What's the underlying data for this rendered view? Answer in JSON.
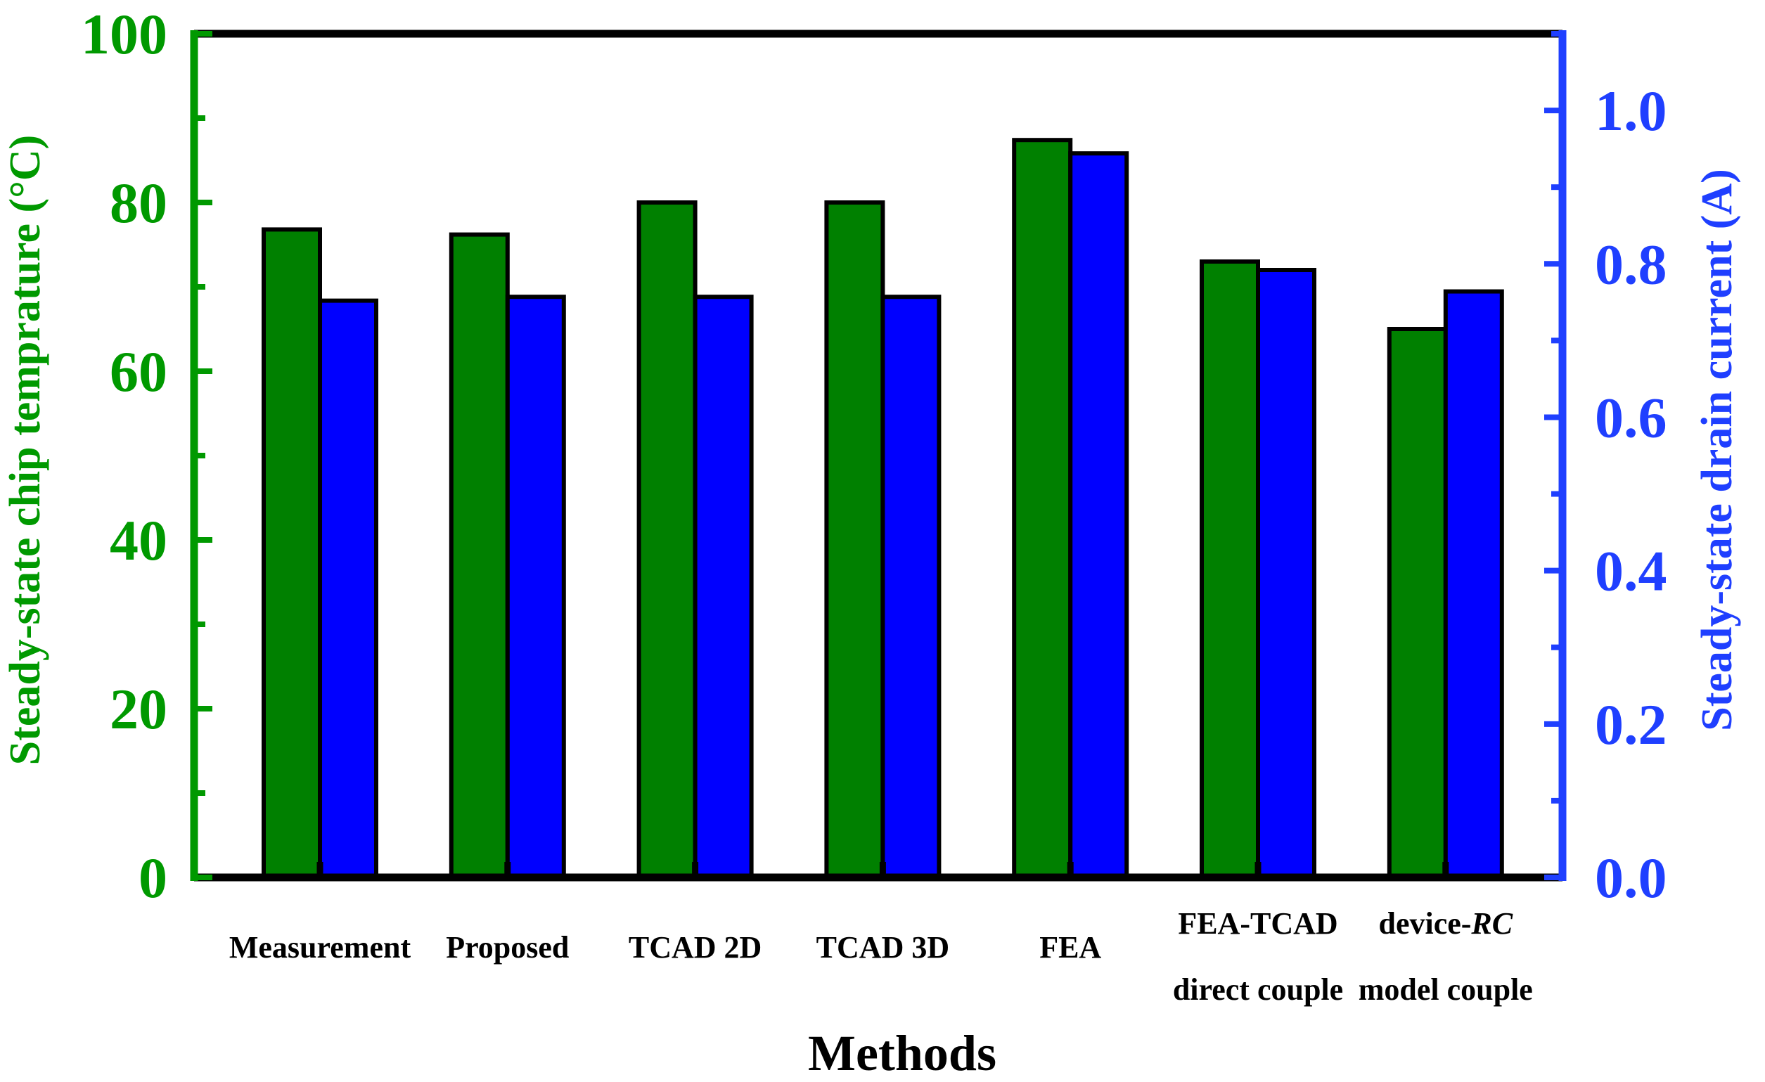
{
  "chart_data": {
    "type": "bar",
    "xlabel": "Methods",
    "categories": [
      {
        "line1": "Measurement",
        "line2": ""
      },
      {
        "line1": "Proposed",
        "line2": ""
      },
      {
        "line1": "TCAD 2D",
        "line2": ""
      },
      {
        "line1": "TCAD 3D",
        "line2": ""
      },
      {
        "line1": "FEA",
        "line2": ""
      },
      {
        "line1": "FEA-TCAD",
        "line2": "direct couple"
      },
      {
        "line1": "device-",
        "line1_italic": "RC",
        "line2": "model couple"
      }
    ],
    "series": [
      {
        "name": "Steady-state chip temprature",
        "axis": "left",
        "color": "#008000",
        "values": [
          76.8,
          76.2,
          80.0,
          80.0,
          87.4,
          73.0,
          65.0
        ]
      },
      {
        "name": "Steady-state drain current",
        "axis": "right",
        "color": "#0000ff",
        "values": [
          0.752,
          0.757,
          0.757,
          0.757,
          0.944,
          0.792,
          0.764
        ]
      }
    ],
    "left_axis": {
      "label": "Steady-state chip temprature (°C)",
      "color": "#009900",
      "ylim": [
        0,
        100
      ],
      "ticks": [
        "0",
        "20",
        "40",
        "60",
        "80",
        "100"
      ]
    },
    "right_axis": {
      "label": "Steady-state drain current (A)",
      "color": "#1f3fff",
      "ylim": [
        0,
        1.1
      ],
      "ticks": [
        "0.0",
        "0.2",
        "0.4",
        "0.6",
        "0.8",
        "1.0"
      ]
    }
  }
}
